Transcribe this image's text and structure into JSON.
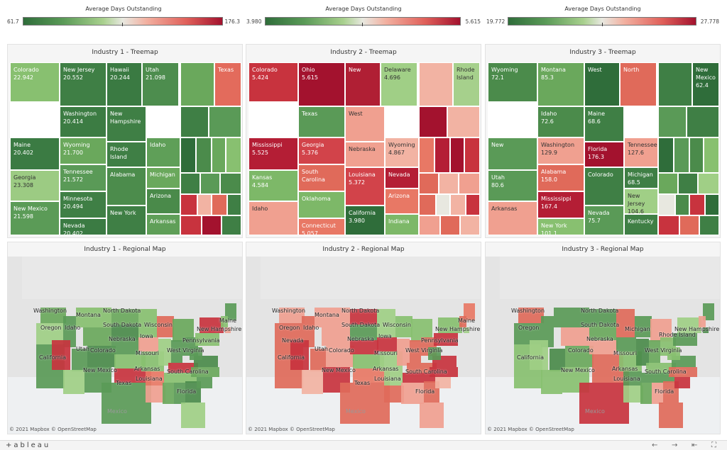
{
  "colors": {
    "dark_green": "#2f6d3a",
    "mid_green": "#5a9a57",
    "light_green": "#a8d08d",
    "neutral": "#e8e8e0",
    "light_red": "#f2b0a0",
    "mid_red": "#e0605a",
    "dark_red": "#a3122e"
  },
  "legends": [
    {
      "title": "Average Days Outstanding",
      "min": "61.7",
      "max": "176.3"
    },
    {
      "title": "Average Days Outstanding",
      "min": "3.980",
      "max": "5.615"
    },
    {
      "title": "Average Days Outstanding",
      "min": "19.772",
      "max": "27.778"
    }
  ],
  "treemaps": [
    {
      "title": "Industry 1 - Treemap",
      "cells": [
        {
          "label": "Colorado\n22.942",
          "c": "#88c070"
        },
        {
          "label": "New Jersey\n20.552",
          "c": "#3f7f45"
        },
        {
          "label": "Hawaii\n20.244",
          "c": "#3a7a42"
        },
        {
          "label": "Utah\n21.098",
          "c": "#4d8d4e"
        },
        {
          "label": "Texas",
          "c": "#e36b5c"
        },
        {
          "label": "Washington\n20.414",
          "c": "#3c7c43"
        },
        {
          "label": "New\nHampshire",
          "c": "#3f7f45"
        },
        {
          "label": "Maine\n20.402",
          "c": "#3b7b43"
        },
        {
          "label": "Wyoming\n21.700",
          "c": "#6aa85c"
        },
        {
          "label": "Rhode\nIsland",
          "c": "#3f7f45"
        },
        {
          "label": "Idaho",
          "c": "#5f9f58"
        },
        {
          "label": "Tennessee\n21.572",
          "c": "#5a9a57"
        },
        {
          "label": "Michigan",
          "c": "#6aa85c"
        },
        {
          "label": "Georgia\n23.308",
          "c": "#9ccb83"
        },
        {
          "label": "Alabama",
          "c": "#4c8c4c"
        },
        {
          "label": "Arizona",
          "c": "#4a8a4a"
        },
        {
          "label": "Minnesota\n20.494",
          "c": "#3f7f45"
        },
        {
          "label": "New Mexico\n21.598",
          "c": "#5b9b57"
        },
        {
          "label": "Nevada\n20.402",
          "c": "#3b7b43"
        },
        {
          "label": "New York",
          "c": "#3f7f45"
        },
        {
          "label": "Arkansas",
          "c": "#5f9f58"
        }
      ]
    },
    {
      "title": "Industry 2 - Treemap",
      "cells": [
        {
          "label": "Colorado\n5.424",
          "c": "#c8333e"
        },
        {
          "label": "Ohio\n5.615",
          "c": "#a3122e"
        },
        {
          "label": "New",
          "c": "#b01f34"
        },
        {
          "label": "Delaware\n4.696",
          "c": "#a0cf86"
        },
        {
          "label": "Rhode\nIsland",
          "c": "#a6d08c"
        },
        {
          "label": "Texas",
          "c": "#5a9a57"
        },
        {
          "label": "West",
          "c": "#f0a090"
        },
        {
          "label": "Mississippi\n5.525",
          "c": "#b41e35"
        },
        {
          "label": "Georgia\n5.376",
          "c": "#d2434a"
        },
        {
          "label": "Nebraska",
          "c": "#f0a090"
        },
        {
          "label": "Wyoming\n4.867",
          "c": "#f2b3a3"
        },
        {
          "label": "South\nCarolina",
          "c": "#e06a5a"
        },
        {
          "label": "Nevada",
          "c": "#b41e35"
        },
        {
          "label": "Kansas\n4.584",
          "c": "#7db868"
        },
        {
          "label": "Louisiana\n5.372",
          "c": "#d2434a"
        },
        {
          "label": "Arizona",
          "c": "#e87865"
        },
        {
          "label": "Oklahoma",
          "c": "#7db868"
        },
        {
          "label": "Idaho",
          "c": "#f0a090"
        },
        {
          "label": "Connecticut\n5.057",
          "c": "#e87865"
        },
        {
          "label": "California\n3.980",
          "c": "#2f6d3a"
        },
        {
          "label": "Indiana",
          "c": "#7db868"
        }
      ]
    },
    {
      "title": "Industry 3 - Treemap",
      "cells": [
        {
          "label": "Wyoming\n72.1",
          "c": "#4b8b4b"
        },
        {
          "label": "Montana\n85.3",
          "c": "#6aa85c"
        },
        {
          "label": "West",
          "c": "#2f6d3a"
        },
        {
          "label": "North",
          "c": "#e06a5a"
        },
        {
          "label": "New Mexico\n62.4",
          "c": "#2f6d3a"
        },
        {
          "label": "Idaho\n72.6",
          "c": "#4b8b4b"
        },
        {
          "label": "Maine\n68.6",
          "c": "#3f7f45"
        },
        {
          "label": "New",
          "c": "#5a9a57"
        },
        {
          "label": "Washington\n129.9",
          "c": "#f0a090"
        },
        {
          "label": "Florida\n176.3",
          "c": "#a3122e"
        },
        {
          "label": "Tennessee\n127.6",
          "c": "#f0a090"
        },
        {
          "label": "Alabama\n158.0",
          "c": "#e06a5a"
        },
        {
          "label": "Michigan\n68.5",
          "c": "#3f7f45"
        },
        {
          "label": "Utah\n80.6",
          "c": "#5a9a57"
        },
        {
          "label": "Colorado",
          "c": "#3f7f45"
        },
        {
          "label": "New Jersey\n104.6",
          "c": "#a0cf86"
        },
        {
          "label": "Mississippi\n167.4",
          "c": "#b41e35"
        },
        {
          "label": "Arkansas",
          "c": "#f0a090"
        },
        {
          "label": "New York\n101.1",
          "c": "#88c070"
        },
        {
          "label": "Nevada\n75.7",
          "c": "#5a9a57"
        },
        {
          "label": "Kentucky",
          "c": "#3f7f45"
        }
      ]
    }
  ],
  "maps": [
    {
      "title": "Industry 1 - Regional Map",
      "attribution": "© 2021 Mapbox  © OpenStreetMap",
      "mexico": "Mexico",
      "labels": [
        "Washington",
        "Montana",
        "North Dakota",
        "Maine",
        "Oregon",
        "Idaho",
        "South Dakota",
        "Wisconsin",
        "New Hampshire",
        "Nebraska",
        "Iowa",
        "Pennsylvania",
        "California",
        "Utah",
        "Colorado",
        "Missouri",
        "West Virginia",
        "New Mexico",
        "Arkansas",
        "South Carolina",
        "Texas",
        "Louisiana",
        "Florida"
      ],
      "states": [
        "#6aa85c",
        "#a0cf86",
        "#5a9a57",
        "#5a9a57",
        "#c8333e",
        "#88c070",
        "#6aa85c",
        "#5a9a57",
        "#4b8b4b",
        "#a0cf86",
        "#5a9a57",
        "#6aa85c",
        "#4b8b4b",
        "#5a9a57",
        "#88c070",
        "#c8333e",
        "#5a9a57",
        "#88c070",
        "#f0a090",
        "#88c070",
        "#e87865",
        "#f0a090",
        "#e06a5a"
      ]
    },
    {
      "title": "Industry 2 - Regional Map",
      "attribution": "© 2021 Mapbox  © OpenStreetMap",
      "mexico": "Mexico",
      "labels": [
        "Washington",
        "Montana",
        "North Dakota",
        "Maine",
        "Oregon",
        "Idaho",
        "South Dakota",
        "Wisconsin",
        "New Hampshire",
        "Nebraska",
        "Iowa",
        "Pennsylvania",
        "California",
        "Nevada",
        "Utah",
        "Colorado",
        "Missouri",
        "West Virginia",
        "New Mexico",
        "Arkansas",
        "Texas",
        "Louisiana",
        "South Carolina",
        "Florida"
      ],
      "states": [
        "#f0a090",
        "#e06a5a",
        "#e06a5a",
        "#e06a5a",
        "#c8333e",
        "#f0a090",
        "#f0a090",
        "#e06a5a",
        "#f0a090",
        "#f2b3a3",
        "#c8333e",
        "#c8333e",
        "#5a9a57",
        "#c8333e",
        "#88c070",
        "#e87865",
        "#e06a5a",
        "#a0cf86",
        "#c8333e",
        "#a0cf86",
        "#a0cf86",
        "#e06a5a",
        "#88c070",
        "#88c070"
      ]
    },
    {
      "title": "Industry 3 - Regional Map",
      "attribution": "© 2021 Mapbox  © OpenStreetMap",
      "mexico": "Mexico",
      "labels": [
        "Washington",
        "North Dakota",
        "Oregon",
        "South Dakota",
        "Michigan",
        "New Hampshire",
        "Nebraska",
        "Rhode Island",
        "California",
        "Colorado",
        "Missouri",
        "West Virginia",
        "New Mexico",
        "Arkansas",
        "South Carolina",
        "Louisiana",
        "Florida"
      ],
      "states": [
        "#e06a5a",
        "#5a9a57",
        "#88c070",
        "#5a9a57",
        "#a0cf86",
        "#5a9a57",
        "#f0a090",
        "#4b8b4b",
        "#6aa85c",
        "#88c070",
        "#88c070",
        "#5a9a57",
        "#6aa85c",
        "#f0a090",
        "#e06a5a",
        "#e06a5a",
        "#c8333e"
      ]
    }
  ],
  "footer": {
    "logo": "+ableau",
    "nav_back": "←",
    "nav_forward": "→",
    "nav_first": "⇤",
    "nav_fullscreen": "⛶"
  }
}
